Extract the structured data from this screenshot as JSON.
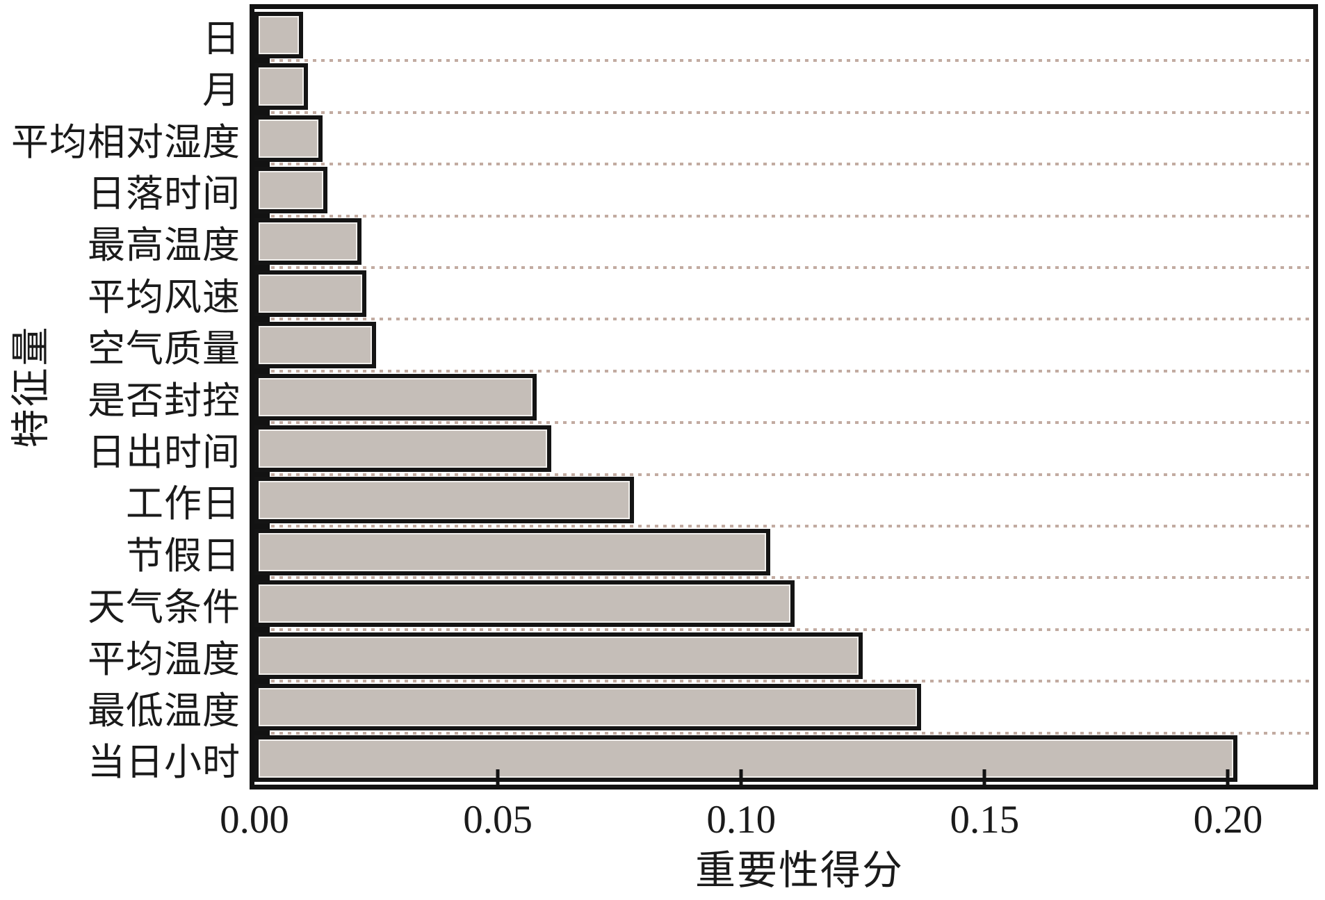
{
  "figure": {
    "background_color": "#ffffff",
    "frame_color": "#121212"
  },
  "chart_data": {
    "type": "bar",
    "orientation": "horizontal",
    "title": "",
    "xlabel": "重要性得分",
    "ylabel": "特征量",
    "categories_top_to_bottom": [
      "日",
      "月",
      "平均相对湿度",
      "日落时间",
      "最高温度",
      "平均风速",
      "空气质量",
      "是否封控",
      "日出时间",
      "工作日",
      "节假日",
      "天气条件",
      "平均温度",
      "最低温度",
      "当日小时"
    ],
    "values": [
      0.01,
      0.011,
      0.014,
      0.015,
      0.022,
      0.023,
      0.025,
      0.058,
      0.061,
      0.078,
      0.106,
      0.111,
      0.125,
      0.137,
      0.202
    ],
    "xticks": [
      {
        "label": "0.00",
        "value": 0.0
      },
      {
        "label": "0.05",
        "value": 0.05
      },
      {
        "label": "0.10",
        "value": 0.1
      },
      {
        "label": "0.15",
        "value": 0.15
      },
      {
        "label": "0.20",
        "value": 0.2
      }
    ],
    "xlim": [
      0,
      0.2175
    ],
    "grid": "horizontal-dashed",
    "legend_position": "none",
    "bar_fill_color": "#c5beb8",
    "bar_border_color": "#141414",
    "grid_color": "#c2aba1"
  }
}
